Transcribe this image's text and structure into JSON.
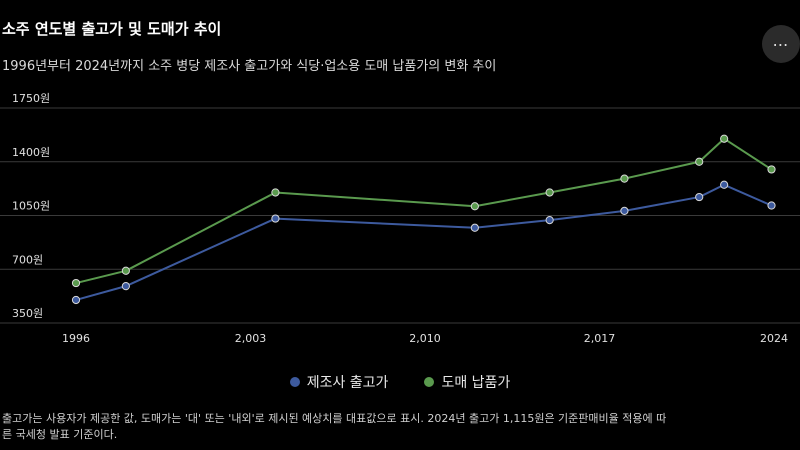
{
  "header": {
    "title": "소주 연도별 출고가 및 도매가 추이",
    "subtitle": "1996년부터 2024년까지 소주 병당 제조사 출고가와 식당·업소용 도매 납품가의 변화 추이",
    "more_label": "⋯"
  },
  "footnote": {
    "line1": "출고가는 사용자가 제공한 값, 도매가는 '대' 또는 '내외'로 제시된 예상치를 대표값으로 표시. 2024년 출고가 1,115원은 기준판매비율 적용에 따",
    "line2": "른 국세청 발표 기준이다."
  },
  "colors": {
    "background": "#000000",
    "factory": "#3d5a9e",
    "wholesale": "#5a9a4e",
    "grid": "#3a3a3a"
  },
  "chart_data": {
    "type": "line",
    "title": "소주 연도별 출고가 및 도매가 추이",
    "subtitle": "1996년부터 2024년까지 소주 병당 제조사 출고가와 식당·업소용 도매 납품가의 변화 추이",
    "xlabel": "",
    "ylabel": "",
    "xlim": [
      1996,
      2024
    ],
    "ylim": [
      350,
      1750
    ],
    "x_ticks": [
      1996,
      2003,
      2010,
      2017,
      2024
    ],
    "x_tick_labels": [
      "1996",
      "2,003",
      "2,010",
      "2,017",
      "2024"
    ],
    "y_ticks": [
      350,
      700,
      1050,
      1400,
      1750
    ],
    "y_tick_labels": [
      "350원",
      "700원",
      "1050원",
      "1400원",
      "1750원"
    ],
    "grid": true,
    "legend_position": "bottom",
    "series": [
      {
        "name": "제조사 출고가",
        "color": "#3d5a9e",
        "points": [
          [
            1996,
            500
          ],
          [
            1998,
            590
          ],
          [
            2004,
            1030
          ],
          [
            2012,
            970
          ],
          [
            2015,
            1020
          ],
          [
            2018,
            1080
          ],
          [
            2021,
            1170
          ],
          [
            2022,
            1250
          ],
          [
            2023.9,
            1115
          ]
        ]
      },
      {
        "name": "도매 납품가",
        "color": "#5a9a4e",
        "points": [
          [
            1996,
            610
          ],
          [
            1998,
            690
          ],
          [
            2004,
            1200
          ],
          [
            2012,
            1110
          ],
          [
            2015,
            1200
          ],
          [
            2018,
            1290
          ],
          [
            2021,
            1400
          ],
          [
            2022,
            1550
          ],
          [
            2023.9,
            1350
          ]
        ]
      }
    ]
  }
}
